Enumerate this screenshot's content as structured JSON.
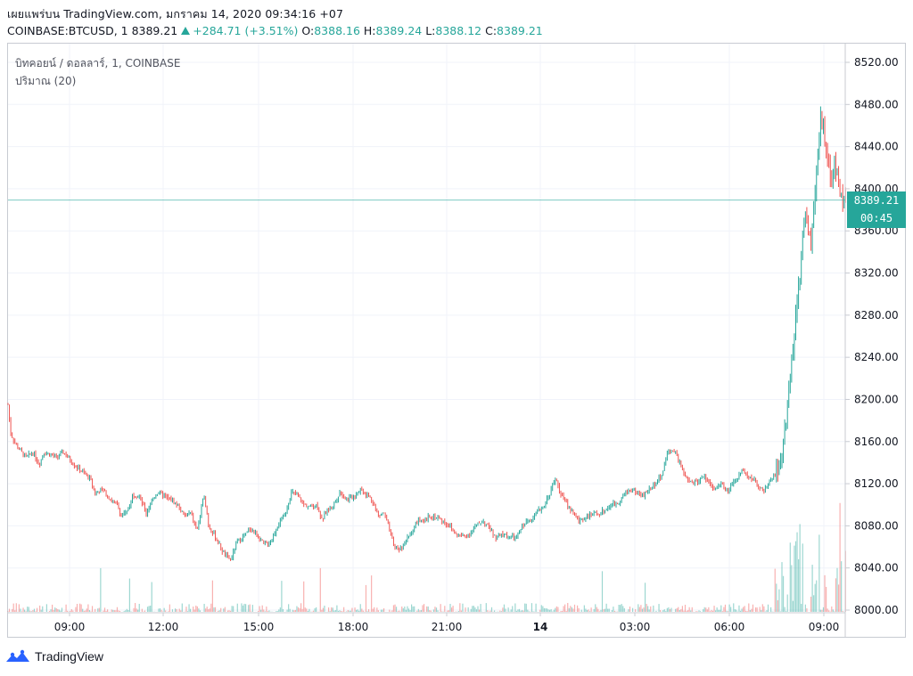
{
  "header": {
    "line1": "เผยแพร่บน TradingView.com, มกราคม 14, 2020 09:34:16 +07",
    "symbol": "COINBASE:BTCUSD, 1 8389.21",
    "change": "+284.71 (+3.51%)",
    "o_label": "O:",
    "o_value": "8388.16",
    "h_label": "H:",
    "h_value": "8389.24",
    "l_label": "L:",
    "l_value": "8388.12",
    "c_label": "C:",
    "c_value": "8389.21"
  },
  "legend": {
    "series": "บิทคอยน์ / ดอลลาร์, 1, COINBASE",
    "volume": "ปริมาณ (20)"
  },
  "price_tag": {
    "price": "8389.21",
    "timer": "00:45"
  },
  "footer": {
    "brand": "TradingView"
  },
  "colors": {
    "up": "#26a69a",
    "down": "#ef5350",
    "grid": "#f0f3fa",
    "text": "#131722"
  },
  "chart_data": {
    "type": "candlestick",
    "y_ticks": [
      "8520.00",
      "8480.00",
      "8440.00",
      "8400.00",
      "8360.00",
      "8320.00",
      "8280.00",
      "8240.00",
      "8200.00",
      "8160.00",
      "8120.00",
      "8080.00",
      "8040.00",
      "8000.00"
    ],
    "ylim": [
      8000,
      8530
    ],
    "x_ticks": [
      "09:00",
      "12:00",
      "15:00",
      "18:00",
      "21:00",
      "14",
      "03:00",
      "06:00",
      "09:00"
    ],
    "last_price": 8389.21,
    "price_path": [
      [
        0,
        8195
      ],
      [
        3,
        8168
      ],
      [
        8,
        8158
      ],
      [
        15,
        8150
      ],
      [
        20,
        8145
      ],
      [
        28,
        8150
      ],
      [
        35,
        8138
      ],
      [
        40,
        8150
      ],
      [
        46,
        8148
      ],
      [
        55,
        8145
      ],
      [
        62,
        8150
      ],
      [
        70,
        8142
      ],
      [
        78,
        8135
      ],
      [
        85,
        8130
      ],
      [
        92,
        8125
      ],
      [
        98,
        8110
      ],
      [
        105,
        8115
      ],
      [
        115,
        8105
      ],
      [
        122,
        8100
      ],
      [
        127,
        8090
      ],
      [
        133,
        8092
      ],
      [
        140,
        8110
      ],
      [
        147,
        8108
      ],
      [
        155,
        8092
      ],
      [
        162,
        8105
      ],
      [
        168,
        8112
      ],
      [
        175,
        8108
      ],
      [
        182,
        8105
      ],
      [
        190,
        8100
      ],
      [
        197,
        8090
      ],
      [
        205,
        8092
      ],
      [
        212,
        8075
      ],
      [
        220,
        8110
      ],
      [
        225,
        8080
      ],
      [
        232,
        8070
      ],
      [
        238,
        8060
      ],
      [
        243,
        8052
      ],
      [
        250,
        8048
      ],
      [
        257,
        8065
      ],
      [
        265,
        8070
      ],
      [
        272,
        8078
      ],
      [
        280,
        8070
      ],
      [
        287,
        8062
      ],
      [
        295,
        8065
      ],
      [
        302,
        8080
      ],
      [
        310,
        8090
      ],
      [
        318,
        8112
      ],
      [
        325,
        8108
      ],
      [
        332,
        8100
      ],
      [
        340,
        8098
      ],
      [
        347,
        8100
      ],
      [
        352,
        8085
      ],
      [
        358,
        8095
      ],
      [
        365,
        8100
      ],
      [
        372,
        8112
      ],
      [
        380,
        8105
      ],
      [
        388,
        8108
      ],
      [
        395,
        8115
      ],
      [
        402,
        8110
      ],
      [
        408,
        8105
      ],
      [
        415,
        8090
      ],
      [
        422,
        8092
      ],
      [
        428,
        8075
      ],
      [
        433,
        8060
      ],
      [
        440,
        8058
      ],
      [
        446,
        8065
      ],
      [
        453,
        8075
      ],
      [
        460,
        8085
      ],
      [
        467,
        8083
      ],
      [
        473,
        8090
      ],
      [
        480,
        8088
      ],
      [
        487,
        8085
      ],
      [
        495,
        8080
      ],
      [
        502,
        8072
      ],
      [
        510,
        8070
      ],
      [
        517,
        8072
      ],
      [
        525,
        8080
      ],
      [
        532,
        8085
      ],
      [
        540,
        8078
      ],
      [
        547,
        8068
      ],
      [
        555,
        8072
      ],
      [
        562,
        8070
      ],
      [
        570,
        8068
      ],
      [
        577,
        8080
      ],
      [
        584,
        8085
      ],
      [
        592,
        8092
      ],
      [
        600,
        8098
      ],
      [
        607,
        8110
      ],
      [
        614,
        8125
      ],
      [
        620,
        8110
      ],
      [
        627,
        8100
      ],
      [
        634,
        8092
      ],
      [
        640,
        8085
      ],
      [
        647,
        8088
      ],
      [
        655,
        8090
      ],
      [
        662,
        8092
      ],
      [
        670,
        8095
      ],
      [
        677,
        8100
      ],
      [
        684,
        8102
      ],
      [
        691,
        8110
      ],
      [
        698,
        8115
      ],
      [
        705,
        8112
      ],
      [
        712,
        8108
      ],
      [
        719,
        8115
      ],
      [
        726,
        8120
      ],
      [
        733,
        8128
      ],
      [
        740,
        8150
      ],
      [
        747,
        8152
      ],
      [
        753,
        8140
      ],
      [
        760,
        8125
      ],
      [
        767,
        8120
      ],
      [
        774,
        8122
      ],
      [
        780,
        8128
      ],
      [
        787,
        8120
      ],
      [
        794,
        8115
      ],
      [
        800,
        8120
      ],
      [
        806,
        8112
      ],
      [
        812,
        8118
      ],
      [
        818,
        8125
      ],
      [
        824,
        8135
      ],
      [
        830,
        8125
      ],
      [
        836,
        8125
      ],
      [
        842,
        8118
      ],
      [
        848,
        8112
      ],
      [
        853,
        8120
      ],
      [
        858,
        8128
      ],
      [
        863,
        8135
      ],
      [
        868,
        8150
      ],
      [
        872,
        8175
      ],
      [
        876,
        8210
      ],
      [
        880,
        8250
      ],
      [
        884,
        8280
      ],
      [
        888,
        8315
      ],
      [
        891,
        8350
      ],
      [
        894,
        8375
      ],
      [
        897,
        8365
      ],
      [
        900,
        8345
      ],
      [
        903,
        8370
      ],
      [
        906,
        8400
      ],
      [
        909,
        8440
      ],
      [
        912,
        8470
      ],
      [
        915,
        8455
      ],
      [
        918,
        8430
      ],
      [
        921,
        8420
      ],
      [
        924,
        8410
      ],
      [
        927,
        8425
      ],
      [
        930,
        8415
      ],
      [
        933,
        8400
      ],
      [
        936,
        8392
      ],
      [
        940,
        8389
      ]
    ]
  }
}
